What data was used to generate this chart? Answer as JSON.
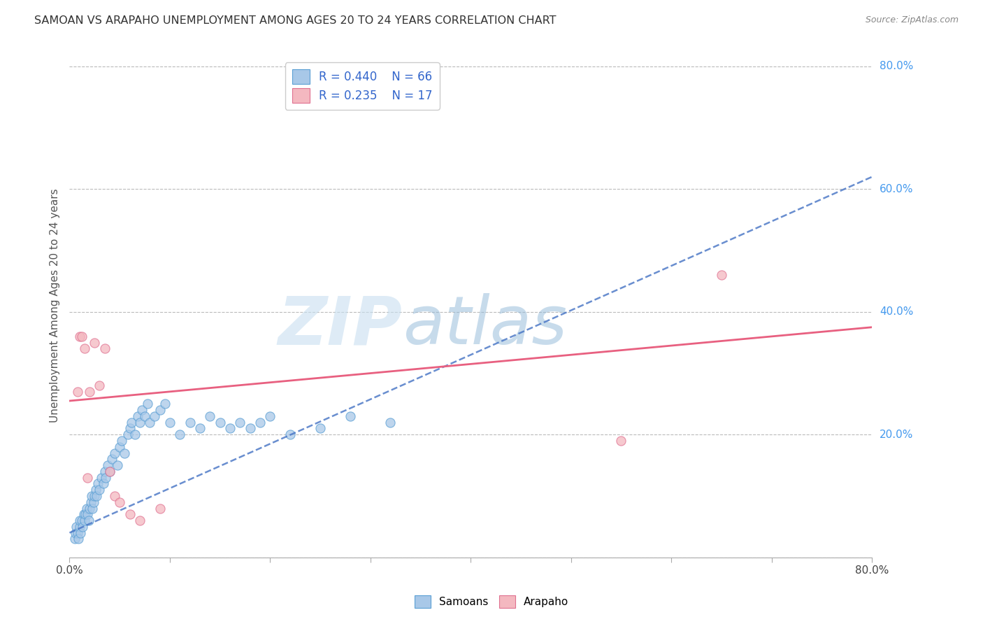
{
  "title": "SAMOAN VS ARAPAHO UNEMPLOYMENT AMONG AGES 20 TO 24 YEARS CORRELATION CHART",
  "source": "Source: ZipAtlas.com",
  "ylabel": "Unemployment Among Ages 20 to 24 years",
  "xlim": [
    0,
    0.8
  ],
  "ylim": [
    0.0,
    0.82
  ],
  "samoans_R": 0.44,
  "samoans_N": 66,
  "arapaho_R": 0.235,
  "arapaho_N": 17,
  "samoan_color": "#a8c8e8",
  "samoan_edge_color": "#5a9fd4",
  "arapaho_color": "#f4b8c0",
  "arapaho_edge_color": "#e07090",
  "samoan_line_color": "#4472c4",
  "arapaho_line_color": "#e86080",
  "legend_text_color": "#3366cc",
  "watermark_zip_color": "#c8dff0",
  "watermark_atlas_color": "#90b8d8",
  "background_color": "#ffffff",
  "grid_color": "#bbbbbb",
  "right_label_color": "#4499ee",
  "samoans_x": [
    0.005,
    0.006,
    0.007,
    0.008,
    0.009,
    0.01,
    0.01,
    0.011,
    0.012,
    0.013,
    0.014,
    0.015,
    0.016,
    0.017,
    0.018,
    0.019,
    0.02,
    0.021,
    0.022,
    0.023,
    0.024,
    0.025,
    0.026,
    0.027,
    0.028,
    0.03,
    0.032,
    0.034,
    0.035,
    0.036,
    0.038,
    0.04,
    0.042,
    0.045,
    0.048,
    0.05,
    0.052,
    0.055,
    0.058,
    0.06,
    0.062,
    0.065,
    0.068,
    0.07,
    0.072,
    0.075,
    0.078,
    0.08,
    0.085,
    0.09,
    0.095,
    0.1,
    0.11,
    0.12,
    0.13,
    0.14,
    0.15,
    0.16,
    0.17,
    0.18,
    0.19,
    0.2,
    0.22,
    0.25,
    0.28,
    0.32
  ],
  "samoans_y": [
    0.03,
    0.04,
    0.05,
    0.04,
    0.03,
    0.05,
    0.06,
    0.04,
    0.06,
    0.05,
    0.07,
    0.06,
    0.07,
    0.08,
    0.07,
    0.06,
    0.08,
    0.09,
    0.1,
    0.08,
    0.09,
    0.1,
    0.11,
    0.1,
    0.12,
    0.11,
    0.13,
    0.12,
    0.14,
    0.13,
    0.15,
    0.14,
    0.16,
    0.17,
    0.15,
    0.18,
    0.19,
    0.17,
    0.2,
    0.21,
    0.22,
    0.2,
    0.23,
    0.22,
    0.24,
    0.23,
    0.25,
    0.22,
    0.23,
    0.24,
    0.25,
    0.22,
    0.2,
    0.22,
    0.21,
    0.23,
    0.22,
    0.21,
    0.22,
    0.21,
    0.22,
    0.23,
    0.2,
    0.21,
    0.23,
    0.22
  ],
  "arapaho_x": [
    0.008,
    0.01,
    0.012,
    0.015,
    0.018,
    0.02,
    0.025,
    0.03,
    0.035,
    0.04,
    0.045,
    0.05,
    0.06,
    0.07,
    0.09,
    0.55,
    0.65
  ],
  "arapaho_y": [
    0.27,
    0.36,
    0.36,
    0.34,
    0.13,
    0.27,
    0.35,
    0.28,
    0.34,
    0.14,
    0.1,
    0.09,
    0.07,
    0.06,
    0.08,
    0.19,
    0.46
  ],
  "samoan_trendline_x": [
    0.0,
    0.8
  ],
  "samoan_trendline_y": [
    0.04,
    0.62
  ],
  "arapaho_trendline_x": [
    0.0,
    0.8
  ],
  "arapaho_trendline_y": [
    0.255,
    0.375
  ],
  "xticks": [
    0.0,
    0.1,
    0.2,
    0.3,
    0.4,
    0.5,
    0.6,
    0.7,
    0.8
  ],
  "yticks": [
    0.0,
    0.2,
    0.4,
    0.6,
    0.8
  ],
  "right_ytick_labels": {
    "0.2": "20.0%",
    "0.4": "40.0%",
    "0.6": "60.0%",
    "0.8": "80.0%"
  }
}
